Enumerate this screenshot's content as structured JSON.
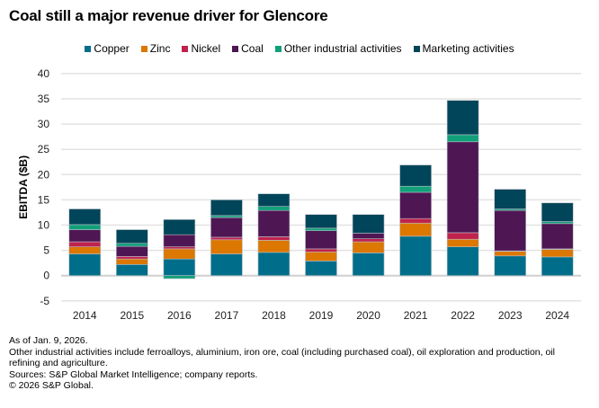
{
  "chart_data": {
    "type": "bar",
    "stacked": true,
    "title": "Coal still a major revenue driver for Glencore",
    "ylabel": "EBITDA ($B)",
    "xlabel": "",
    "ylim": [
      -5,
      40
    ],
    "yticks": [
      -5,
      0,
      5,
      10,
      15,
      20,
      25,
      30,
      35,
      40
    ],
    "grid": true,
    "legend_position": "top",
    "categories": [
      "2014",
      "2015",
      "2016",
      "2017",
      "2018",
      "2019",
      "2020",
      "2021",
      "2022",
      "2023",
      "2024"
    ],
    "series": [
      {
        "name": "Copper",
        "color": "#006e8a",
        "values": [
          4.3,
          2.2,
          3.3,
          4.3,
          4.6,
          2.9,
          4.5,
          7.8,
          5.7,
          3.9,
          3.7
        ]
      },
      {
        "name": "Zinc",
        "color": "#dc7700",
        "values": [
          1.4,
          1.1,
          2.0,
          2.8,
          2.4,
          1.8,
          2.2,
          2.6,
          1.5,
          0.9,
          1.5
        ]
      },
      {
        "name": "Nickel",
        "color": "#c0224e",
        "values": [
          1.0,
          0.5,
          0.4,
          0.5,
          0.7,
          0.6,
          0.6,
          0.9,
          1.3,
          0.1,
          0.1
        ]
      },
      {
        "name": "Coal",
        "color": "#4f1654",
        "values": [
          2.4,
          2.0,
          2.4,
          3.9,
          5.2,
          3.6,
          1.1,
          5.2,
          18.0,
          8.0,
          5.0
        ]
      },
      {
        "name": "Other industrial activities",
        "color": "#12a07a",
        "values": [
          1.0,
          0.6,
          -0.6,
          0.4,
          0.8,
          0.5,
          0.0,
          1.2,
          1.4,
          0.3,
          0.4
        ]
      },
      {
        "name": "Marketing activities",
        "color": "#004559",
        "values": [
          3.1,
          2.7,
          3.0,
          3.1,
          2.5,
          2.7,
          3.7,
          4.2,
          6.8,
          3.9,
          3.7
        ]
      }
    ]
  },
  "notes": [
    "As of Jan. 9, 2026.",
    "Other industrial activities include ferroalloys, aluminium, iron ore, coal (including purchased coal), oil exploration and production, oil refining and agriculture.",
    "Sources: S&P Global Market Intelligence; company reports.",
    "© 2026 S&P Global."
  ]
}
